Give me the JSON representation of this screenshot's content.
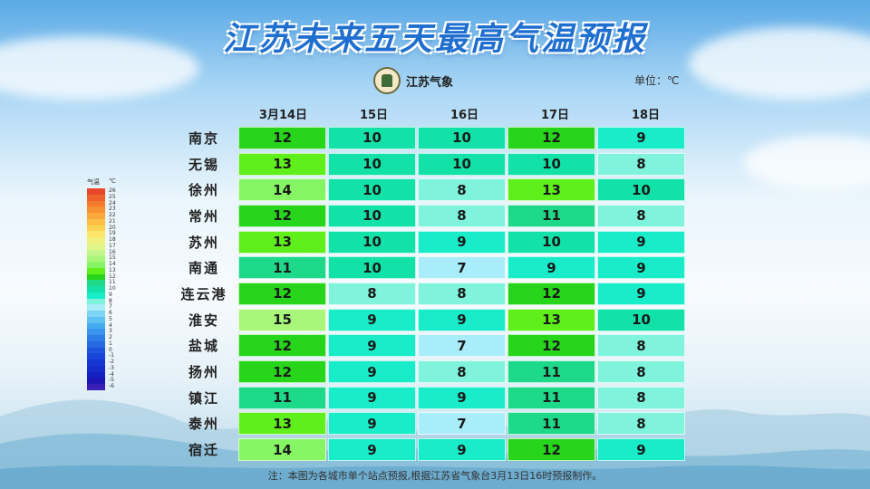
{
  "title": "江苏未来五天最高气温预报",
  "brand": "江苏气象",
  "unit_label": "单位：℃",
  "dates": [
    "3月14日",
    "15日",
    "16日",
    "17日",
    "18日"
  ],
  "cities": [
    {
      "name": "南京",
      "values": [
        12,
        10,
        10,
        12,
        9
      ]
    },
    {
      "name": "无锡",
      "values": [
        13,
        10,
        10,
        10,
        8
      ]
    },
    {
      "name": "徐州",
      "values": [
        14,
        10,
        8,
        13,
        10
      ]
    },
    {
      "name": "常州",
      "values": [
        12,
        10,
        8,
        11,
        8
      ]
    },
    {
      "name": "苏州",
      "values": [
        13,
        10,
        9,
        10,
        9
      ]
    },
    {
      "name": "南通",
      "values": [
        11,
        10,
        7,
        9,
        9
      ]
    },
    {
      "name": "连云港",
      "values": [
        12,
        8,
        8,
        12,
        9
      ]
    },
    {
      "name": "淮安",
      "values": [
        15,
        9,
        9,
        13,
        10
      ]
    },
    {
      "name": "盐城",
      "values": [
        12,
        9,
        7,
        12,
        8
      ]
    },
    {
      "name": "扬州",
      "values": [
        12,
        9,
        8,
        11,
        8
      ]
    },
    {
      "name": "镇江",
      "values": [
        11,
        9,
        9,
        11,
        8
      ]
    },
    {
      "name": "泰州",
      "values": [
        13,
        9,
        7,
        11,
        8
      ]
    },
    {
      "name": "宿迁",
      "values": [
        14,
        9,
        9,
        12,
        9
      ]
    }
  ],
  "legend": {
    "title": "气温",
    "unit": "℃",
    "levels": [
      {
        "label": "26",
        "color": "#e8472a"
      },
      {
        "label": "25",
        "color": "#f0612c"
      },
      {
        "label": "24",
        "color": "#f57a2e"
      },
      {
        "label": "23",
        "color": "#f79232"
      },
      {
        "label": "22",
        "color": "#f9a93a"
      },
      {
        "label": "21",
        "color": "#fbbf45"
      },
      {
        "label": "20",
        "color": "#fcd455"
      },
      {
        "label": "19",
        "color": "#fde46a"
      },
      {
        "label": "18",
        "color": "#f2f07c"
      },
      {
        "label": "17",
        "color": "#dff58a"
      },
      {
        "label": "16",
        "color": "#c8f58a"
      },
      {
        "label": "15",
        "color": "#a8f77a"
      },
      {
        "label": "14",
        "color": "#86f563"
      },
      {
        "label": "13",
        "color": "#5fef1a"
      },
      {
        "label": "12",
        "color": "#27d61a"
      },
      {
        "label": "11",
        "color": "#1ed98a"
      },
      {
        "label": "10",
        "color": "#12e2a8"
      },
      {
        "label": "9",
        "color": "#19ecc8"
      },
      {
        "label": "8",
        "color": "#7ff3dc"
      },
      {
        "label": "7",
        "color": "#a9ecfa"
      },
      {
        "label": "6",
        "color": "#7dd4f7"
      },
      {
        "label": "5",
        "color": "#5fc0f4"
      },
      {
        "label": "4",
        "color": "#46aaf0"
      },
      {
        "label": "3",
        "color": "#3a93ec"
      },
      {
        "label": "2",
        "color": "#2f7de8"
      },
      {
        "label": "1",
        "color": "#2768e3"
      },
      {
        "label": "0",
        "color": "#1f55de"
      },
      {
        "label": "-1",
        "color": "#1a45d8"
      },
      {
        "label": "-2",
        "color": "#1737d2"
      },
      {
        "label": "-3",
        "color": "#152bcb"
      },
      {
        "label": "-4",
        "color": "#1420c2"
      },
      {
        "label": "-5",
        "color": "#1d17b8"
      },
      {
        "label": "-6",
        "color": "#3a1fb4"
      }
    ]
  },
  "note": "注：本图为各城市单个站点预报,根据江苏省气象台3月13日16时预报制作。"
}
